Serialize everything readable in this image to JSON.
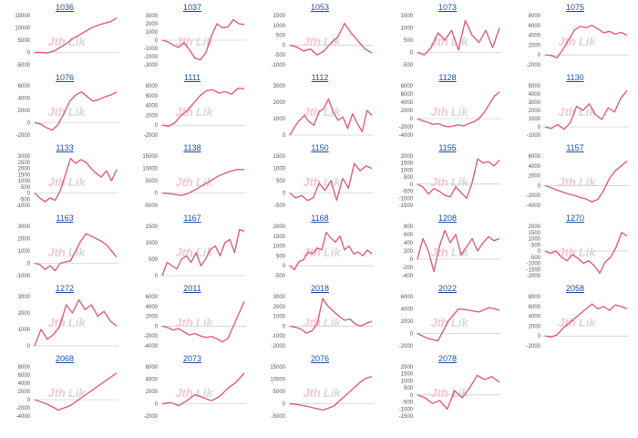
{
  "colors": {
    "line": "#e0607a",
    "title": "#1f4fa3",
    "axis": "#bdbdbd",
    "watermark": "#d8d8d8",
    "watermark_accent": "#f4c9cf"
  },
  "watermark": {
    "left": "Jth",
    "right": "Lik"
  },
  "chart_data": [
    {
      "type": "line",
      "title": "1036",
      "yticks": [
        15000,
        10000,
        5000,
        0,
        -5000
      ],
      "ylim": [
        -5000,
        15000
      ],
      "values": [
        0,
        0,
        -200,
        500,
        2000,
        3500,
        5500,
        7000,
        8500,
        10000,
        11000,
        11800,
        12500,
        14000
      ]
    },
    {
      "type": "line",
      "title": "1037",
      "yticks": [
        3000,
        2000,
        1000,
        0,
        -1000,
        -2000,
        -3000
      ],
      "ylim": [
        -3000,
        3000
      ],
      "values": [
        0,
        -200,
        -600,
        -900,
        -300,
        -1200,
        -2200,
        -2400,
        -1500,
        500,
        2000,
        1500,
        1600,
        2500,
        2000,
        1900
      ]
    },
    {
      "type": "line",
      "title": "1053",
      "yticks": [
        1500,
        1000,
        500,
        0,
        -500,
        -1000
      ],
      "ylim": [
        -1000,
        1500
      ],
      "values": [
        0,
        -100,
        -300,
        -200,
        -500,
        -300,
        100,
        400,
        1100,
        600,
        200,
        -200,
        -400
      ]
    },
    {
      "type": "line",
      "title": "1073",
      "yticks": [
        1500,
        1000,
        500,
        0,
        -500
      ],
      "ylim": [
        -500,
        1500
      ],
      "values": [
        0,
        -100,
        200,
        800,
        500,
        900,
        100,
        1300,
        700,
        400,
        900,
        200,
        1000
      ]
    },
    {
      "type": "line",
      "title": "1075",
      "yticks": [
        8000,
        6000,
        4000,
        2000,
        0,
        -2000
      ],
      "ylim": [
        -2000,
        8000
      ],
      "values": [
        0,
        -100,
        -600,
        1000,
        3000,
        5000,
        5800,
        5500,
        6000,
        5300,
        4500,
        4800,
        4200,
        4600,
        4000
      ]
    },
    {
      "type": "line",
      "title": "1076",
      "yticks": [
        6000,
        4000,
        2000,
        0,
        -2000
      ],
      "ylim": [
        -2000,
        6000
      ],
      "values": [
        0,
        -200,
        -800,
        -1200,
        -300,
        1500,
        3500,
        4500,
        5000,
        4200,
        3500,
        3800,
        4200,
        4500,
        5000
      ]
    },
    {
      "type": "line",
      "title": "1111",
      "yticks": [
        8000,
        6000,
        4000,
        2000,
        0,
        -2000
      ],
      "ylim": [
        -2000,
        8000
      ],
      "values": [
        0,
        -200,
        500,
        2000,
        3000,
        4500,
        6000,
        7000,
        7200,
        6500,
        6800,
        6300,
        7500,
        7400
      ]
    },
    {
      "type": "line",
      "title": "1112",
      "yticks": [
        3000,
        2000,
        1000,
        0
      ],
      "ylim": [
        0,
        3000
      ],
      "values": [
        0,
        500,
        900,
        1200,
        800,
        600,
        1400,
        1600,
        2200,
        1400,
        900,
        1100,
        400,
        1300,
        700,
        200,
        1500,
        1200
      ]
    },
    {
      "type": "line",
      "title": "1128",
      "yticks": [
        8000,
        6000,
        4000,
        2000,
        0,
        -2000,
        -4000
      ],
      "ylim": [
        -4000,
        8000
      ],
      "values": [
        0,
        -500,
        -900,
        -1400,
        -1200,
        -1700,
        -2000,
        -1800,
        -1500,
        -1800,
        -1200,
        -800,
        0,
        1500,
        3500,
        5500,
        6500
      ]
    },
    {
      "type": "line",
      "title": "1130",
      "yticks": [
        5000,
        4000,
        3000,
        2000,
        1000,
        0,
        -1000
      ],
      "ylim": [
        -1000,
        5000
      ],
      "values": [
        0,
        -200,
        300,
        -300,
        500,
        2500,
        2000,
        2800,
        1500,
        900,
        2300,
        1800,
        3500,
        4400
      ]
    },
    {
      "type": "line",
      "title": "1133",
      "yticks": [
        3000,
        2500,
        2000,
        1500,
        1000,
        500,
        0,
        -500,
        -1000
      ],
      "ylim": [
        -1000,
        3000
      ],
      "values": [
        0,
        -400,
        -700,
        -400,
        -600,
        200,
        1500,
        2800,
        2400,
        2700,
        2500,
        2000,
        1600,
        1300,
        1800,
        1000,
        1900
      ]
    },
    {
      "type": "line",
      "title": "1138",
      "yticks": [
        15000,
        10000,
        5000,
        0,
        -5000
      ],
      "ylim": [
        -5000,
        15000
      ],
      "values": [
        0,
        -200,
        -600,
        -1000,
        -300,
        1000,
        2500,
        4000,
        5500,
        7000,
        8000,
        9000,
        9600,
        9500
      ]
    },
    {
      "type": "line",
      "title": "1150",
      "yticks": [
        1500,
        1000,
        500,
        0,
        -500
      ],
      "ylim": [
        -500,
        1500
      ],
      "values": [
        0,
        -200,
        -100,
        -300,
        -200,
        400,
        100,
        500,
        -300,
        600,
        200,
        1200,
        900,
        1100,
        1000
      ]
    },
    {
      "type": "line",
      "title": "1155",
      "yticks": [
        2000,
        1500,
        1000,
        500,
        0,
        -500,
        -1000,
        -1500
      ],
      "ylim": [
        -1500,
        2000
      ],
      "values": [
        0,
        -200,
        -700,
        -300,
        -500,
        -800,
        -900,
        -200,
        -600,
        -1000,
        100,
        1800,
        1500,
        1600,
        1300,
        1700
      ]
    },
    {
      "type": "line",
      "title": "1157",
      "yticks": [
        6000,
        4000,
        2000,
        0,
        -2000,
        -4000
      ],
      "ylim": [
        -4000,
        6000
      ],
      "values": [
        0,
        -400,
        -900,
        -1300,
        -1700,
        -2000,
        -2400,
        -2700,
        -3300,
        -2800,
        -1000,
        1500,
        3000,
        4000,
        5000
      ]
    },
    {
      "type": "line",
      "title": "1163",
      "yticks": [
        3000,
        2000,
        1000,
        0,
        -1000
      ],
      "ylim": [
        -1000,
        3000
      ],
      "values": [
        0,
        -100,
        -500,
        -200,
        -600,
        0,
        100,
        200,
        1000,
        1800,
        2400,
        2200,
        2000,
        1800,
        1500,
        1000,
        500
      ]
    },
    {
      "type": "line",
      "title": "1167",
      "yticks": [
        1500,
        1000,
        500,
        0
      ],
      "ylim": [
        0,
        1500
      ],
      "values": [
        0,
        400,
        300,
        200,
        500,
        600,
        400,
        700,
        300,
        500,
        800,
        900,
        600,
        1000,
        1100,
        700,
        1400,
        1350
      ]
    },
    {
      "type": "line",
      "title": "1168",
      "yticks": [
        2000,
        1500,
        1000,
        500,
        0,
        -500
      ],
      "ylim": [
        -500,
        2000
      ],
      "values": [
        0,
        -200,
        200,
        300,
        700,
        600,
        900,
        800,
        1700,
        1400,
        1200,
        1500,
        800,
        1000,
        600,
        700,
        500,
        800,
        600
      ]
    },
    {
      "type": "line",
      "title": "1208",
      "yticks": [
        800,
        600,
        400,
        200,
        0,
        -200,
        -400
      ],
      "ylim": [
        -400,
        800
      ],
      "values": [
        0,
        500,
        200,
        -300,
        300,
        700,
        400,
        600,
        100,
        300,
        500,
        200,
        400,
        550,
        450,
        500
      ]
    },
    {
      "type": "line",
      "title": "1270",
      "yticks": [
        2000,
        1500,
        1000,
        500,
        0,
        -500,
        -1000,
        -1500,
        -2000
      ],
      "ylim": [
        -2000,
        2000
      ],
      "values": [
        0,
        -200,
        0,
        -500,
        -800,
        -300,
        -600,
        -1000,
        -800,
        -1200,
        -1800,
        -900,
        -500,
        300,
        1500,
        1200
      ]
    },
    {
      "type": "line",
      "title": "1272",
      "yticks": [
        3000,
        2000,
        1000,
        0
      ],
      "ylim": [
        0,
        3000
      ],
      "values": [
        0,
        1000,
        400,
        700,
        1200,
        2500,
        2000,
        2800,
        2200,
        2500,
        1800,
        2100,
        1500,
        1200
      ]
    },
    {
      "type": "line",
      "title": "2011",
      "yticks": [
        6000,
        4000,
        2000,
        0,
        -2000,
        -4000
      ],
      "ylim": [
        -4000,
        6000
      ],
      "values": [
        0,
        -300,
        -800,
        -500,
        -1200,
        -1800,
        -1500,
        -2000,
        -2300,
        -2100,
        -2600,
        -3200,
        -2500,
        0,
        2500,
        5000
      ]
    },
    {
      "type": "line",
      "title": "2018",
      "yticks": [
        3000,
        2000,
        1000,
        0,
        -1000,
        -2000
      ],
      "ylim": [
        -2000,
        3000
      ],
      "values": [
        0,
        -100,
        -300,
        -700,
        -500,
        200,
        2800,
        2000,
        1500,
        1000,
        600,
        700,
        200,
        0,
        300,
        500
      ]
    },
    {
      "type": "line",
      "title": "2022",
      "yticks": [
        6000,
        4000,
        2000,
        0,
        -2000
      ],
      "ylim": [
        -2000,
        6000
      ],
      "values": [
        0,
        -800,
        -1200,
        2000,
        4000,
        3800,
        3500,
        4200,
        3800
      ]
    },
    {
      "type": "line",
      "title": "2058",
      "yticks": [
        8000,
        6000,
        4000,
        2000,
        0,
        -2000
      ],
      "ylim": [
        -2000,
        8000
      ],
      "values": [
        0,
        -200,
        200,
        1500,
        2500,
        3500,
        4500,
        5500,
        6500,
        5500,
        6000,
        5200,
        6300,
        6000,
        5500
      ]
    },
    {
      "type": "line",
      "title": "2068",
      "yticks": [
        8000,
        6000,
        4000,
        2000,
        0,
        -2000,
        -4000
      ],
      "ylim": [
        -4000,
        8000
      ],
      "values": [
        0,
        -1000,
        -2500,
        -1500,
        500,
        2500,
        4500,
        6500
      ]
    },
    {
      "type": "line",
      "title": "2073",
      "yticks": [
        6000,
        4000,
        2000,
        0,
        -2000
      ],
      "ylim": [
        -2000,
        6000
      ],
      "values": [
        0,
        200,
        -300,
        500,
        1500,
        1000,
        500,
        1200,
        2500,
        3500,
        5000
      ]
    },
    {
      "type": "line",
      "title": "2076",
      "yticks": [
        15000,
        10000,
        5000,
        0,
        -5000
      ],
      "ylim": [
        -5000,
        15000
      ],
      "values": [
        0,
        -200,
        -600,
        -1000,
        -1500,
        -2000,
        -2500,
        -1800,
        -1000,
        1000,
        3000,
        5000,
        7000,
        9000,
        10500,
        11000
      ]
    },
    {
      "type": "line",
      "title": "2078",
      "yticks": [
        2000,
        1500,
        1000,
        500,
        0,
        -500,
        -1000,
        -1500
      ],
      "ylim": [
        -1500,
        2000
      ],
      "values": [
        0,
        -200,
        -600,
        -400,
        -1000,
        300,
        -200,
        500,
        1400,
        1100,
        1300,
        900
      ]
    }
  ]
}
